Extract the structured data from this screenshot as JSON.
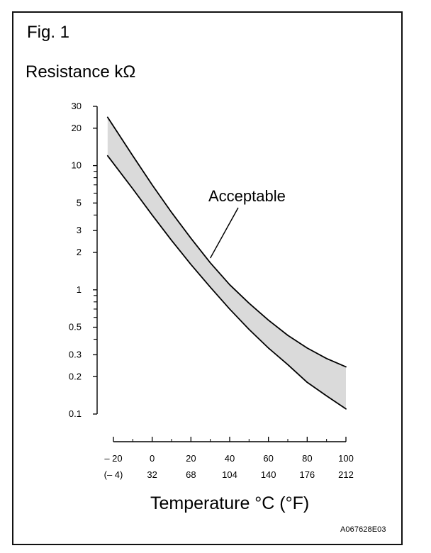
{
  "figure": {
    "label": "Fig. 1",
    "code": "A067628E03"
  },
  "colors": {
    "line": "#000000",
    "band_fill": "#d8d8d8"
  },
  "chart_data": {
    "type": "area",
    "title": "",
    "ylabel": "Resistance kΩ",
    "xlabel": "Temperature °C (°F)",
    "y_scale": "log",
    "ylim": [
      0.1,
      30
    ],
    "xlim": [
      -20,
      100
    ],
    "y_ticks": [
      {
        "value": 30,
        "label": "30"
      },
      {
        "value": 20,
        "label": "20"
      },
      {
        "value": 10,
        "label": "10"
      },
      {
        "value": 5,
        "label": "5"
      },
      {
        "value": 3,
        "label": "3"
      },
      {
        "value": 2,
        "label": "2"
      },
      {
        "value": 1,
        "label": "1"
      },
      {
        "value": 0.5,
        "label": "0.5"
      },
      {
        "value": 0.3,
        "label": "0.3"
      },
      {
        "value": 0.2,
        "label": "0.2"
      },
      {
        "value": 0.1,
        "label": "0.1"
      }
    ],
    "y_minor_ticks": [
      9,
      8,
      7,
      6,
      4,
      0.9,
      0.8,
      0.7,
      0.6,
      0.4
    ],
    "x_ticks": [
      {
        "value": -20,
        "label_c": "– 20",
        "label_f": "(– 4)"
      },
      {
        "value": 0,
        "label_c": "0",
        "label_f": "32"
      },
      {
        "value": 20,
        "label_c": "20",
        "label_f": "68"
      },
      {
        "value": 40,
        "label_c": "40",
        "label_f": "104"
      },
      {
        "value": 60,
        "label_c": "60",
        "label_f": "140"
      },
      {
        "value": 80,
        "label_c": "80",
        "label_f": "176"
      },
      {
        "value": 100,
        "label_c": "100",
        "label_f": "212"
      }
    ],
    "x_minor_ticks": [
      -10,
      10,
      30,
      50,
      70,
      90
    ],
    "series": [
      {
        "name": "upper",
        "x": [
          -23,
          -10,
          0,
          10,
          20,
          30,
          40,
          50,
          60,
          70,
          80,
          90,
          100
        ],
        "values": [
          24.5,
          12.0,
          7.0,
          4.2,
          2.6,
          1.65,
          1.1,
          0.78,
          0.57,
          0.43,
          0.34,
          0.28,
          0.24
        ]
      },
      {
        "name": "lower",
        "x": [
          -23,
          -10,
          0,
          10,
          20,
          30,
          40,
          50,
          60,
          70,
          80,
          90,
          100
        ],
        "values": [
          12.0,
          6.5,
          4.0,
          2.5,
          1.6,
          1.05,
          0.7,
          0.48,
          0.34,
          0.25,
          0.18,
          0.14,
          0.11
        ]
      }
    ],
    "annotations": [
      {
        "text": "Acceptable",
        "target_x": 30,
        "target_y": 1.8
      }
    ],
    "grid": false,
    "legend": "none"
  }
}
